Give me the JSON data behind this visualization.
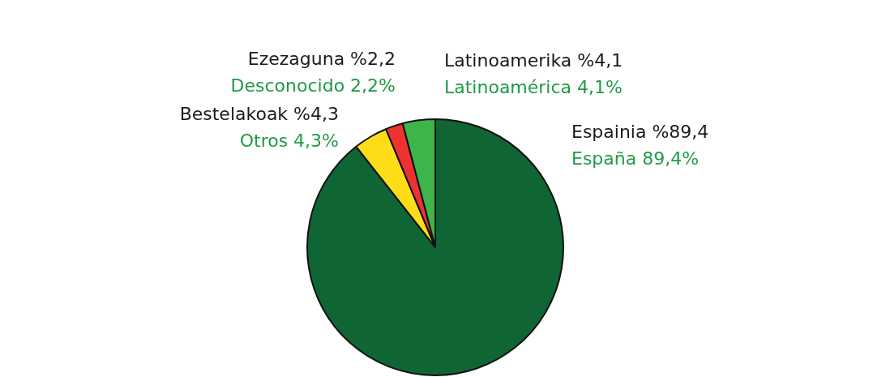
{
  "chart_data": {
    "type": "pie",
    "categories": [
      "España",
      "Otros",
      "Desconocido",
      "Latinoamérica"
    ],
    "values": [
      89.4,
      4.3,
      2.2,
      4.1
    ],
    "colors": [
      "#106535",
      "#fddd17",
      "#ee3232",
      "#3db54a"
    ],
    "value_labels": [
      "89,4%",
      "4,3%",
      "2,2%",
      "4,1%"
    ],
    "annotations": [
      "Espainia %89,4",
      "Bestelakoak %4,3",
      "Ezezaguna %2,2",
      "Latinoamerika %4,1"
    ]
  }
}
